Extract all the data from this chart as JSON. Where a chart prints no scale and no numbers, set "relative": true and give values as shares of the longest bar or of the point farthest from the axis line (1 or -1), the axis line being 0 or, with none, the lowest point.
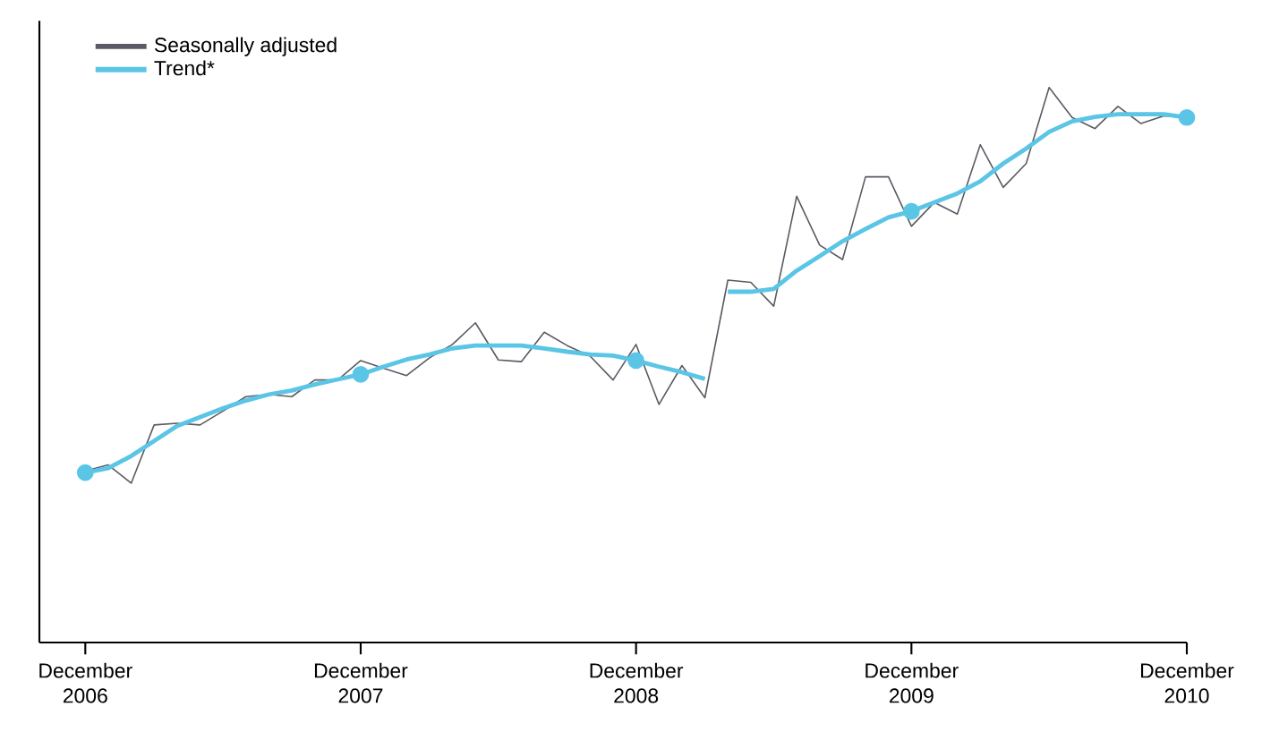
{
  "chart_data": {
    "type": "line",
    "relative": true,
    "legend": "top left",
    "grid": false,
    "x": [
      "2006-12",
      "2007-01",
      "2007-02",
      "2007-03",
      "2007-04",
      "2007-05",
      "2007-06",
      "2007-07",
      "2007-08",
      "2007-09",
      "2007-10",
      "2007-11",
      "2007-12",
      "2008-01",
      "2008-02",
      "2008-03",
      "2008-04",
      "2008-05",
      "2008-06",
      "2008-07",
      "2008-08",
      "2008-09",
      "2008-10",
      "2008-11",
      "2008-12",
      "2009-01",
      "2009-02",
      "2009-03",
      "2009-04",
      "2009-05",
      "2009-06",
      "2009-07",
      "2009-08",
      "2009-09",
      "2009-10",
      "2009-11",
      "2009-12",
      "2010-01",
      "2010-02",
      "2010-03",
      "2010-04",
      "2010-05",
      "2010-06",
      "2010-07",
      "2010-08",
      "2010-09",
      "2010-10",
      "2010-11",
      "2010-12"
    ],
    "xlim": [
      "2006-10",
      "2010-12"
    ],
    "xticks": [
      {
        "value": "2006-12",
        "label": "December 2006"
      },
      {
        "value": "2007-12",
        "label": "December 2007"
      },
      {
        "value": "2008-12",
        "label": "December 2008"
      },
      {
        "value": "2009-12",
        "label": "December 2009"
      },
      {
        "value": "2010-12",
        "label": "December 2010"
      }
    ],
    "series": [
      {
        "name": "Seasonally adjusted",
        "color": "#5a5a64",
        "values": [
          0.309,
          0.32,
          0.287,
          0.392,
          0.395,
          0.392,
          0.417,
          0.443,
          0.447,
          0.443,
          0.473,
          0.473,
          0.508,
          0.494,
          0.481,
          0.513,
          0.537,
          0.576,
          0.509,
          0.506,
          0.559,
          0.535,
          0.516,
          0.473,
          0.537,
          0.429,
          0.499,
          0.441,
          0.653,
          0.649,
          0.606,
          0.804,
          0.716,
          0.69,
          0.839,
          0.839,
          0.75,
          0.793,
          0.772,
          0.897,
          0.82,
          0.863,
          1.0,
          0.946,
          0.926,
          0.966,
          0.935,
          0.949,
          0.946
        ]
      },
      {
        "name": "Trend*",
        "color": "#5bc5e6",
        "values": [
          0.306,
          0.314,
          0.336,
          0.363,
          0.39,
          0.406,
          0.422,
          0.436,
          0.447,
          0.454,
          0.465,
          0.474,
          0.483,
          0.497,
          0.51,
          0.519,
          0.53,
          0.535,
          0.535,
          0.535,
          0.53,
          0.524,
          0.519,
          0.517,
          0.508,
          0.497,
          0.487,
          0.475,
          null,
          null,
          null,
          null,
          null,
          null,
          null,
          null,
          null,
          null,
          null,
          null,
          null,
          null,
          null,
          null,
          null,
          null,
          null,
          null,
          null
        ]
      },
      {
        "color": "#5bc5e6",
        "values": [
          null,
          null,
          null,
          null,
          null,
          null,
          null,
          null,
          null,
          null,
          null,
          null,
          null,
          null,
          null,
          null,
          null,
          null,
          null,
          null,
          null,
          null,
          null,
          null,
          null,
          null,
          null,
          null,
          0.632,
          0.632,
          0.637,
          0.67,
          0.696,
          0.723,
          0.745,
          0.766,
          0.777,
          0.793,
          0.809,
          0.831,
          0.863,
          0.89,
          0.92,
          0.939,
          0.947,
          0.952,
          0.952,
          0.952,
          0.946
        ]
      },
      {
        "type": "scatter",
        "marker": "circle",
        "color": "#5bc5e6",
        "x": [
          "2006-12",
          "2007-12",
          "2008-12",
          "2009-12",
          "2010-12"
        ],
        "values": [
          0.306,
          0.483,
          0.508,
          0.777,
          0.946
        ]
      }
    ]
  }
}
